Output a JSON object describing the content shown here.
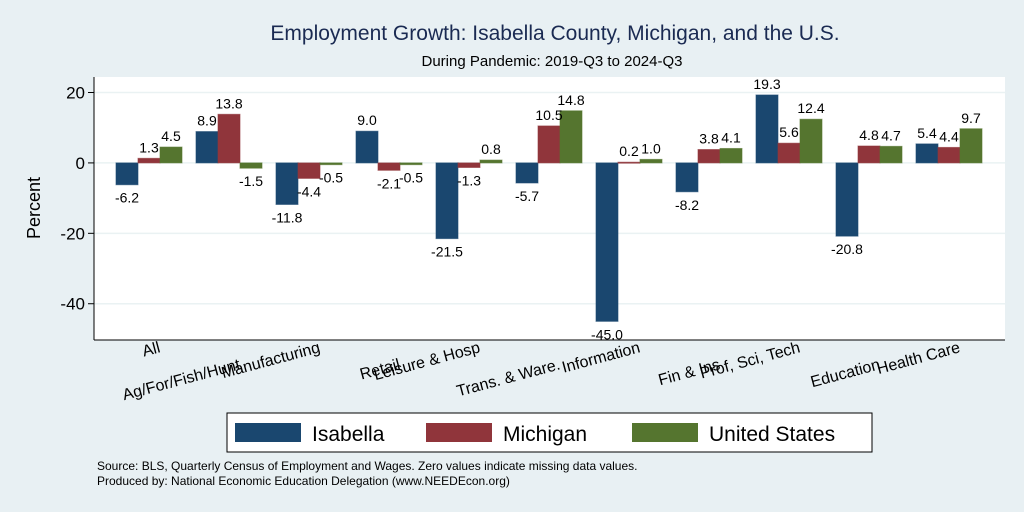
{
  "chart_data": {
    "type": "bar",
    "title": "Employment Growth: Isabella County, Michigan, and the U.S.",
    "subtitle": "During Pandemic: 2019-Q3 to 2024-Q3",
    "xlabel": "",
    "ylabel": "Percent",
    "ylim": [
      -50.3,
      24.4
    ],
    "yticks": [
      20,
      0,
      -20,
      -40
    ],
    "grid": true,
    "legend_position": "bottom",
    "categories": [
      "All",
      "Ag/For/Fish/Hunt",
      "Manufacturing",
      "Retail",
      "Leisure & Hosp",
      "Trans. & Ware.",
      "Information",
      "Fin & Ins",
      "Prof, Sci, Tech",
      "Education",
      "Health Care"
    ],
    "series": [
      {
        "name": "Isabella",
        "color": "#1a476f",
        "values": [
          -6.2,
          8.9,
          -11.8,
          9.0,
          -21.5,
          -5.7,
          -45.0,
          -8.2,
          19.3,
          -20.8,
          5.4
        ]
      },
      {
        "name": "Michigan",
        "color": "#90353b",
        "values": [
          1.3,
          13.8,
          -4.4,
          -2.1,
          -1.3,
          10.5,
          0.2,
          3.8,
          5.6,
          4.8,
          4.4
        ]
      },
      {
        "name": "United States",
        "color": "#55752f",
        "values": [
          4.5,
          -1.5,
          -0.5,
          -0.5,
          0.8,
          14.8,
          1.0,
          4.1,
          12.4,
          4.7,
          9.7
        ]
      }
    ],
    "notes": [
      "Source: BLS, Quarterly Census of Employment and Wages. Zero values indicate missing data values.",
      "Produced by: National Economic Education Delegation (www.NEEDEcon.org)"
    ]
  }
}
